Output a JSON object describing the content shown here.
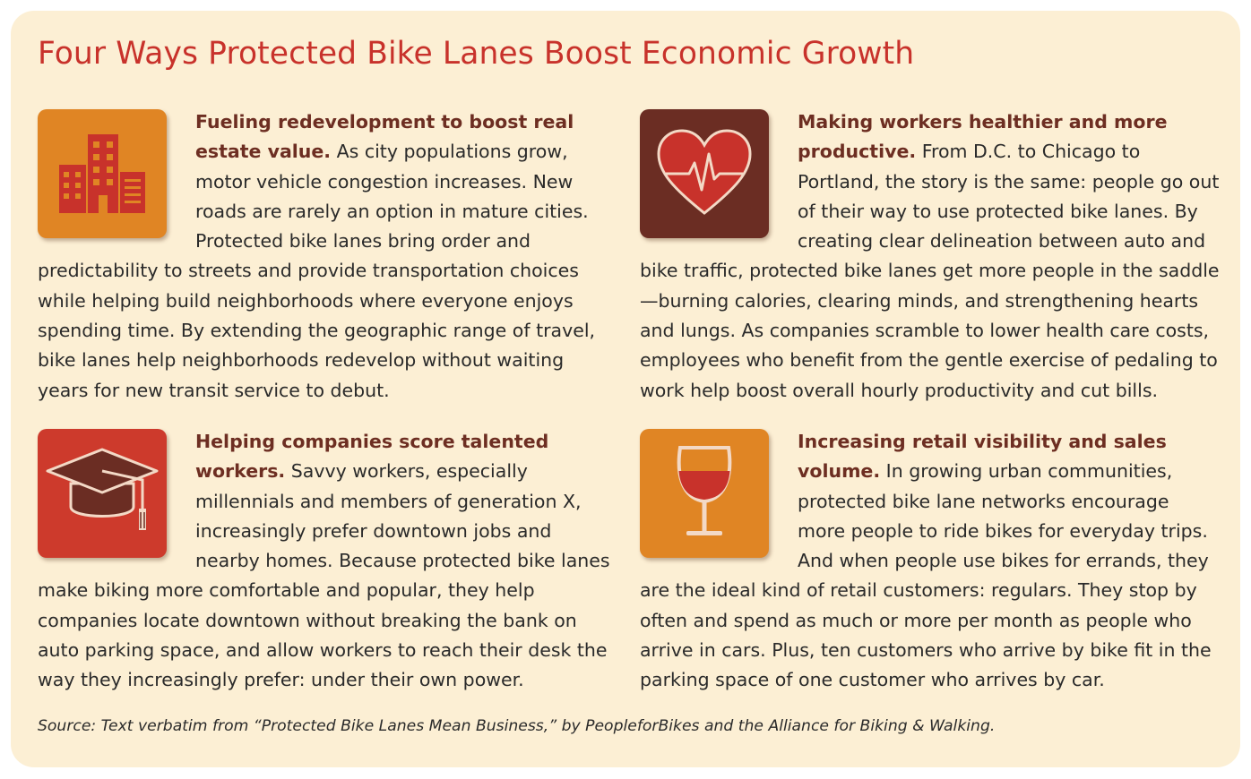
{
  "title": "Four Ways Protected Bike Lanes Boost Economic Growth",
  "sections": [
    {
      "icon": "buildings-icon",
      "icon_bg": "#e08524",
      "lead": "Fueling redevelopment to boost real estate value.",
      "body": "As city populations grow, motor vehicle congestion increases. New roads are rarely an option in mature cities. Protected bike lanes bring order and predictability to streets and provide transportation choices while helping build neighborhoods where everyone enjoys spending time. By extending the geographic range of travel, bike lanes help neighborhoods redevelop without waiting years for new transit service to debut."
    },
    {
      "icon": "heart-pulse-icon",
      "icon_bg": "#6b2d23",
      "lead": "Making workers healthier and more productive.",
      "body": "From D.C. to Chicago to Portland, the story is the same: people go out of their way to use protected bike lanes. By creating clear delineation between auto and bike traffic, protected bike lanes get more people in the saddle—burning calories, clearing minds, and strengthening hearts and lungs. As companies scramble to lower health care costs, employees who benefit from the gentle exercise of pedaling to work help boost overall hourly productivity and cut bills."
    },
    {
      "icon": "graduation-cap-icon",
      "icon_bg": "#cd3a2c",
      "lead": "Helping companies score talented workers.",
      "body": "Savvy workers, especially millennials and members of generation X, increasingly prefer downtown jobs and nearby homes. Because protected bike lanes make biking more comfortable and popular, they help companies locate downtown without breaking the bank on auto parking space, and allow workers to reach their desk the way they increas­ingly prefer: under their own power."
    },
    {
      "icon": "wine-glass-icon",
      "icon_bg": "#e08524",
      "lead": "Increasing retail visibility and sales volume.",
      "body": "In growing urban communities, protected bike lane networks encourage more people to ride bikes for everyday trips. And when people use bikes for errands, they are the ideal kind of retail customers: regulars. They stop by often and spend as much or more per month as people who arrive in cars. Plus, ten customers who arrive by bike fit in the parking space of one customer who arrives by car."
    }
  ],
  "source": "Source: Text verbatim from “Protected Bike Lanes Mean Business,” by PeopleforBikes and the Alliance for Biking & Walking.",
  "colors": {
    "panel": "#fcefd4",
    "title": "#c8322b",
    "lead": "#6d2e22"
  }
}
